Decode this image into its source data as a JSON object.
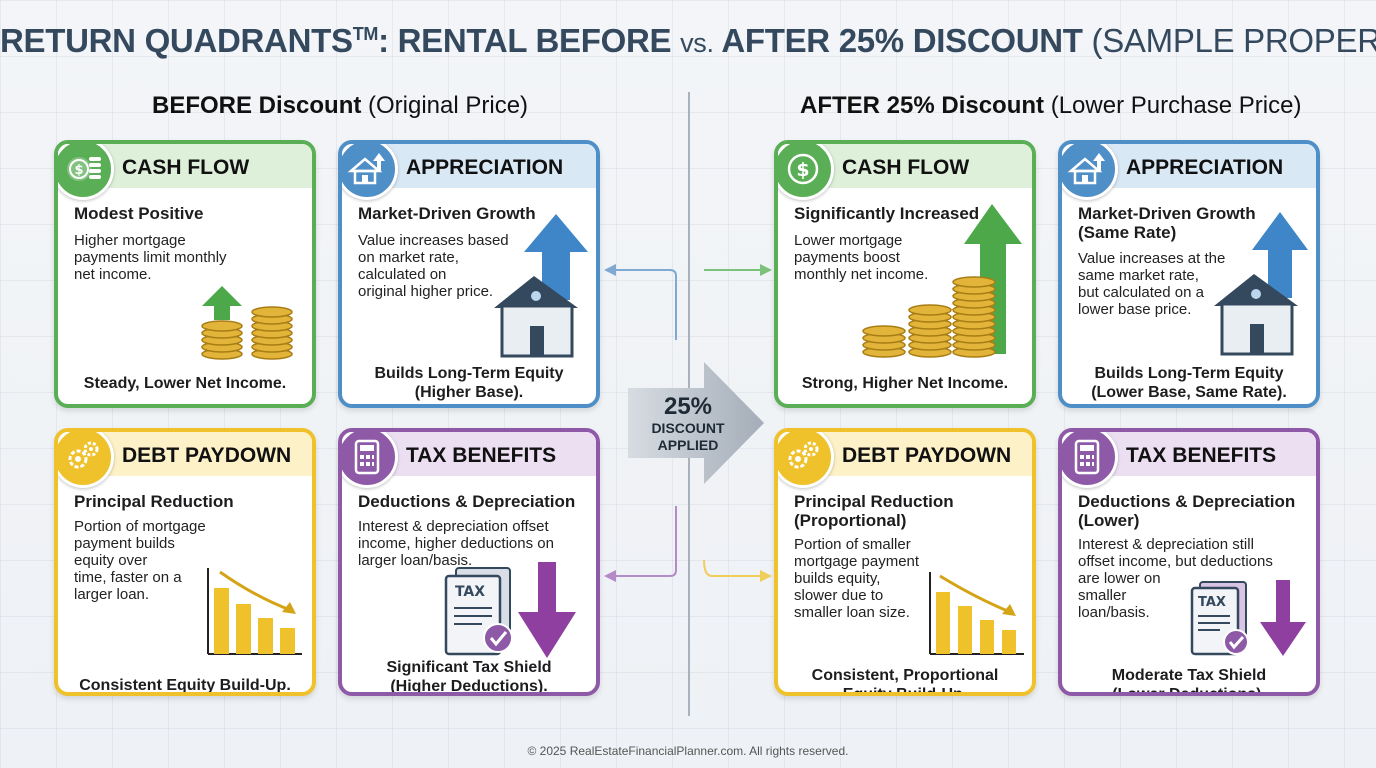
{
  "title": {
    "part1": "RETURN QUADRANTS",
    "tm": "TM",
    "part2": ": RENTAL BEFORE ",
    "vs": "vs.",
    "part3": " AFTER 25% DISCOUNT ",
    "part4": "(SAMPLE PROPERTY)"
  },
  "before_heading": {
    "bold": "BEFORE Discount",
    "rest": " (Original Price)"
  },
  "after_heading": {
    "bold": "AFTER 25% Discount",
    "rest": " (Lower Purchase Price)"
  },
  "center": {
    "percent": "25%",
    "line1": "DISCOUNT",
    "line2": "APPLIED"
  },
  "before": {
    "cash_flow": {
      "title": "CASH FLOW",
      "subtitle": "Modest Positive",
      "desc": [
        "Higher mortgage",
        "payments limit monthly",
        "net income."
      ],
      "footer": [
        "Steady, Lower Net Income."
      ]
    },
    "appreciation": {
      "title": "APPRECIATION",
      "subtitle": "Market-Driven Growth",
      "desc": [
        "Value increases based",
        "on market rate,",
        "calculated on",
        "original higher price."
      ],
      "footer": [
        "Builds Long-Term Equity",
        "(Higher Base)."
      ]
    },
    "debt_paydown": {
      "title": "DEBT PAYDOWN",
      "subtitle": "Principal Reduction",
      "desc": [
        "Portion of mortgage",
        "payment builds",
        "equity over",
        "time, faster on a",
        "larger loan."
      ],
      "footer": [
        "Consistent Equity Build-Up."
      ]
    },
    "tax_benefits": {
      "title": "TAX BENEFITS",
      "subtitle": "Deductions & Depreciation",
      "desc": [
        "Interest & depreciation offset",
        "income, higher deductions on",
        "larger loan/basis."
      ],
      "footer": [
        "Significant Tax Shield",
        "(Higher Deductions)."
      ]
    }
  },
  "after": {
    "cash_flow": {
      "title": "CASH FLOW",
      "subtitle": "Significantly Increased",
      "desc": [
        "Lower mortgage",
        "payments boost",
        "monthly net income."
      ],
      "footer": [
        "Strong, Higher Net Income."
      ]
    },
    "appreciation": {
      "title": "APPRECIATION",
      "subtitle_lines": [
        "Market-Driven Growth",
        "(Same Rate)"
      ],
      "desc": [
        "Value increases at the",
        "same market rate,",
        "but calculated on a",
        "lower base price."
      ],
      "footer": [
        "Builds Long-Term Equity",
        "(Lower Base, Same Rate)."
      ]
    },
    "debt_paydown": {
      "title": "DEBT PAYDOWN",
      "subtitle_lines": [
        "Principal Reduction",
        "(Proportional)"
      ],
      "desc": [
        "Portion of smaller",
        "mortgage payment",
        "builds equity,",
        "slower due to",
        "smaller loan size."
      ],
      "footer": [
        "Consistent, Proportional",
        "Equity Build-Up."
      ]
    },
    "tax_benefits": {
      "title": "TAX BENEFITS",
      "subtitle_lines": [
        "Deductions & Depreciation",
        "(Lower)"
      ],
      "desc": [
        "Interest & depreciation still",
        "offset income, but deductions",
        "are lower on",
        "smaller",
        "loan/basis."
      ],
      "footer": [
        "Moderate Tax Shield",
        "(Lower Deductions)."
      ]
    }
  },
  "tax_doc_label": "TAX",
  "copyright": "© 2025 RealEstateFinancialPlanner.com. All rights reserved.",
  "colors": {
    "cash_flow": "#5aae56",
    "appreciation": "#4f8fc8",
    "debt_paydown": "#efc12b",
    "tax_benefits": "#8e5aa8",
    "title": "#34495e"
  }
}
